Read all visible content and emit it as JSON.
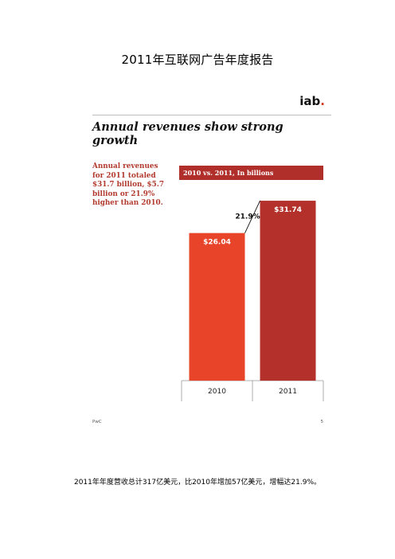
{
  "document": {
    "title": "2011年互联网广告年度报告",
    "caption": "2011年年度营收总计317亿美元，比2010年增加57亿美元，增幅达21.9%。"
  },
  "slide": {
    "logo_text": "iab",
    "logo_dot": ".",
    "headline": "Annual revenues show strong growth",
    "summary_lines": [
      "Annual revenues",
      "for 2011 totaled",
      "$31.7 billion, $5.7",
      "billion or 21.9%",
      "higher than 2010."
    ],
    "banner": "2010 vs. 2011, In billions",
    "footer_left": "PwC",
    "footer_right": "5"
  },
  "chart_data": {
    "type": "bar",
    "categories": [
      "2010",
      "2011"
    ],
    "values": [
      26.04,
      31.74
    ],
    "value_labels": [
      "$26.04",
      "$31.74"
    ],
    "growth_label": "21.9%",
    "ylim": [
      0,
      34
    ],
    "colors": [
      "#e8442a",
      "#b3302b"
    ],
    "grid": false
  }
}
